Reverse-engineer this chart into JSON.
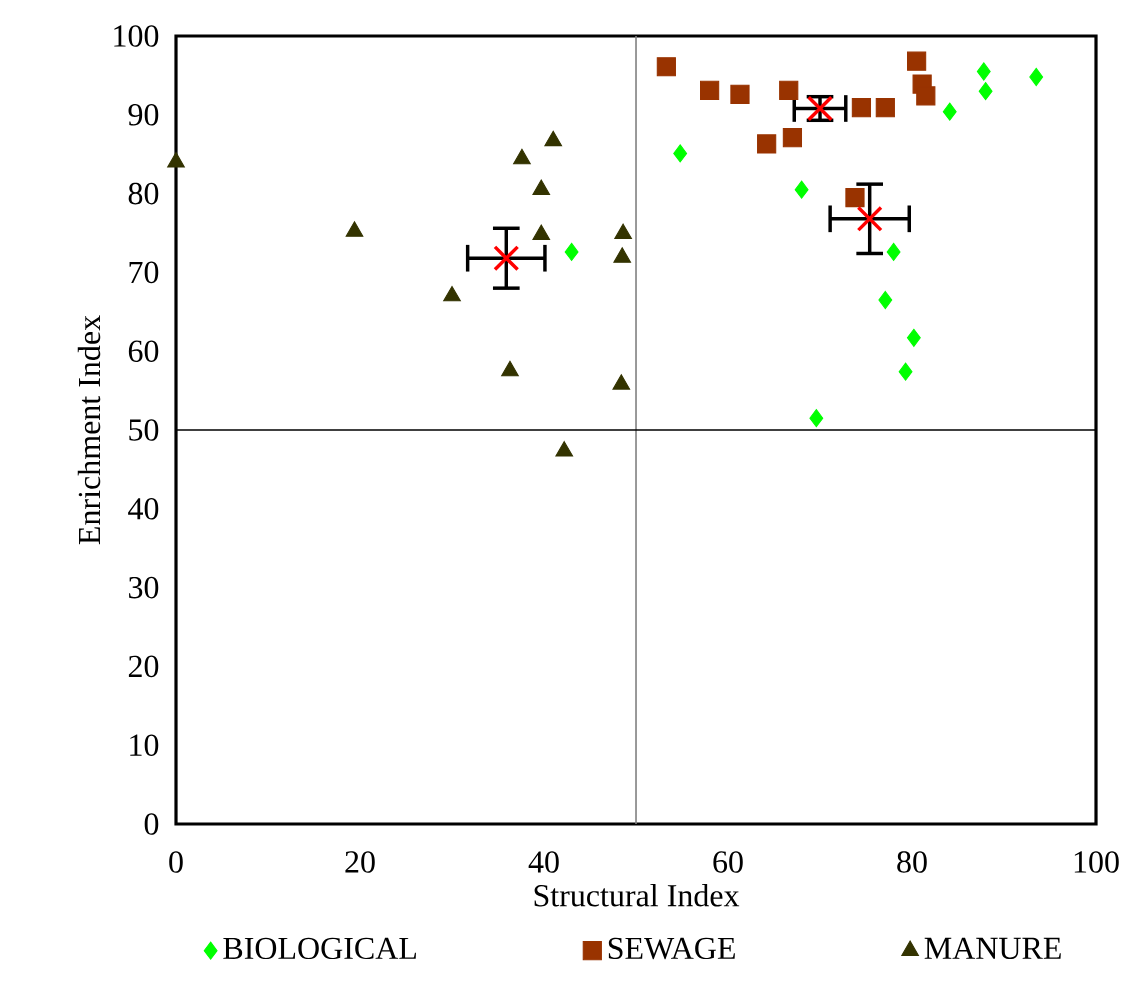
{
  "chart_data": {
    "type": "scatter",
    "xlabel": "Structural Index",
    "ylabel": "Enrichment Index",
    "xlim": [
      0,
      100
    ],
    "ylim": [
      0,
      100
    ],
    "xticks": [
      0,
      20,
      40,
      60,
      80,
      100
    ],
    "yticks": [
      0,
      10,
      20,
      30,
      40,
      50,
      60,
      70,
      80,
      90,
      100
    ],
    "legend": "bottom",
    "series": [
      {
        "name": "BIOLOGICAL",
        "color": "#00ff00",
        "marker": "diamond",
        "x": [
          43.0,
          54.8,
          68.0,
          78.0,
          77.1,
          80.2,
          79.3,
          69.6,
          84.1,
          87.8,
          88.0,
          93.5
        ],
        "values": [
          72.6,
          85.1,
          80.5,
          72.6,
          66.5,
          61.7,
          57.4,
          51.5,
          90.4,
          95.5,
          93.0,
          94.8
        ]
      },
      {
        "name": "SEWAGE",
        "color": "#993300",
        "marker": "square",
        "x": [
          53.3,
          58.0,
          61.3,
          66.6,
          64.2,
          67.0,
          74.5,
          77.1,
          80.5,
          81.1,
          81.5,
          73.8
        ],
        "values": [
          96.1,
          93.1,
          92.6,
          93.1,
          86.3,
          87.1,
          90.9,
          90.9,
          96.8,
          93.9,
          92.4,
          79.5
        ]
      },
      {
        "name": "MANURE",
        "color": "#333300",
        "marker": "triangle",
        "x": [
          0.0,
          41.0,
          37.6,
          39.7,
          39.7,
          19.4,
          48.6,
          48.5,
          30.0,
          36.3,
          48.4,
          42.2
        ],
        "values": [
          84.0,
          86.7,
          84.4,
          80.5,
          74.8,
          75.2,
          74.9,
          71.9,
          67.0,
          57.5,
          55.8,
          47.3
        ]
      },
      {
        "color": "#ff0000",
        "marker": "cross",
        "x": [
          35.9,
          70.0,
          75.4
        ],
        "values": [
          71.8,
          90.8,
          76.8
        ],
        "errors": [
          3.8,
          1.5,
          4.4
        ],
        "xerrors": [
          4.2,
          2.8,
          4.3
        ]
      }
    ],
    "ref_lines": [
      {
        "axis": "x",
        "value": 50,
        "color": "#808080"
      },
      {
        "axis": "y",
        "value": 50,
        "color": "#000000"
      }
    ]
  }
}
